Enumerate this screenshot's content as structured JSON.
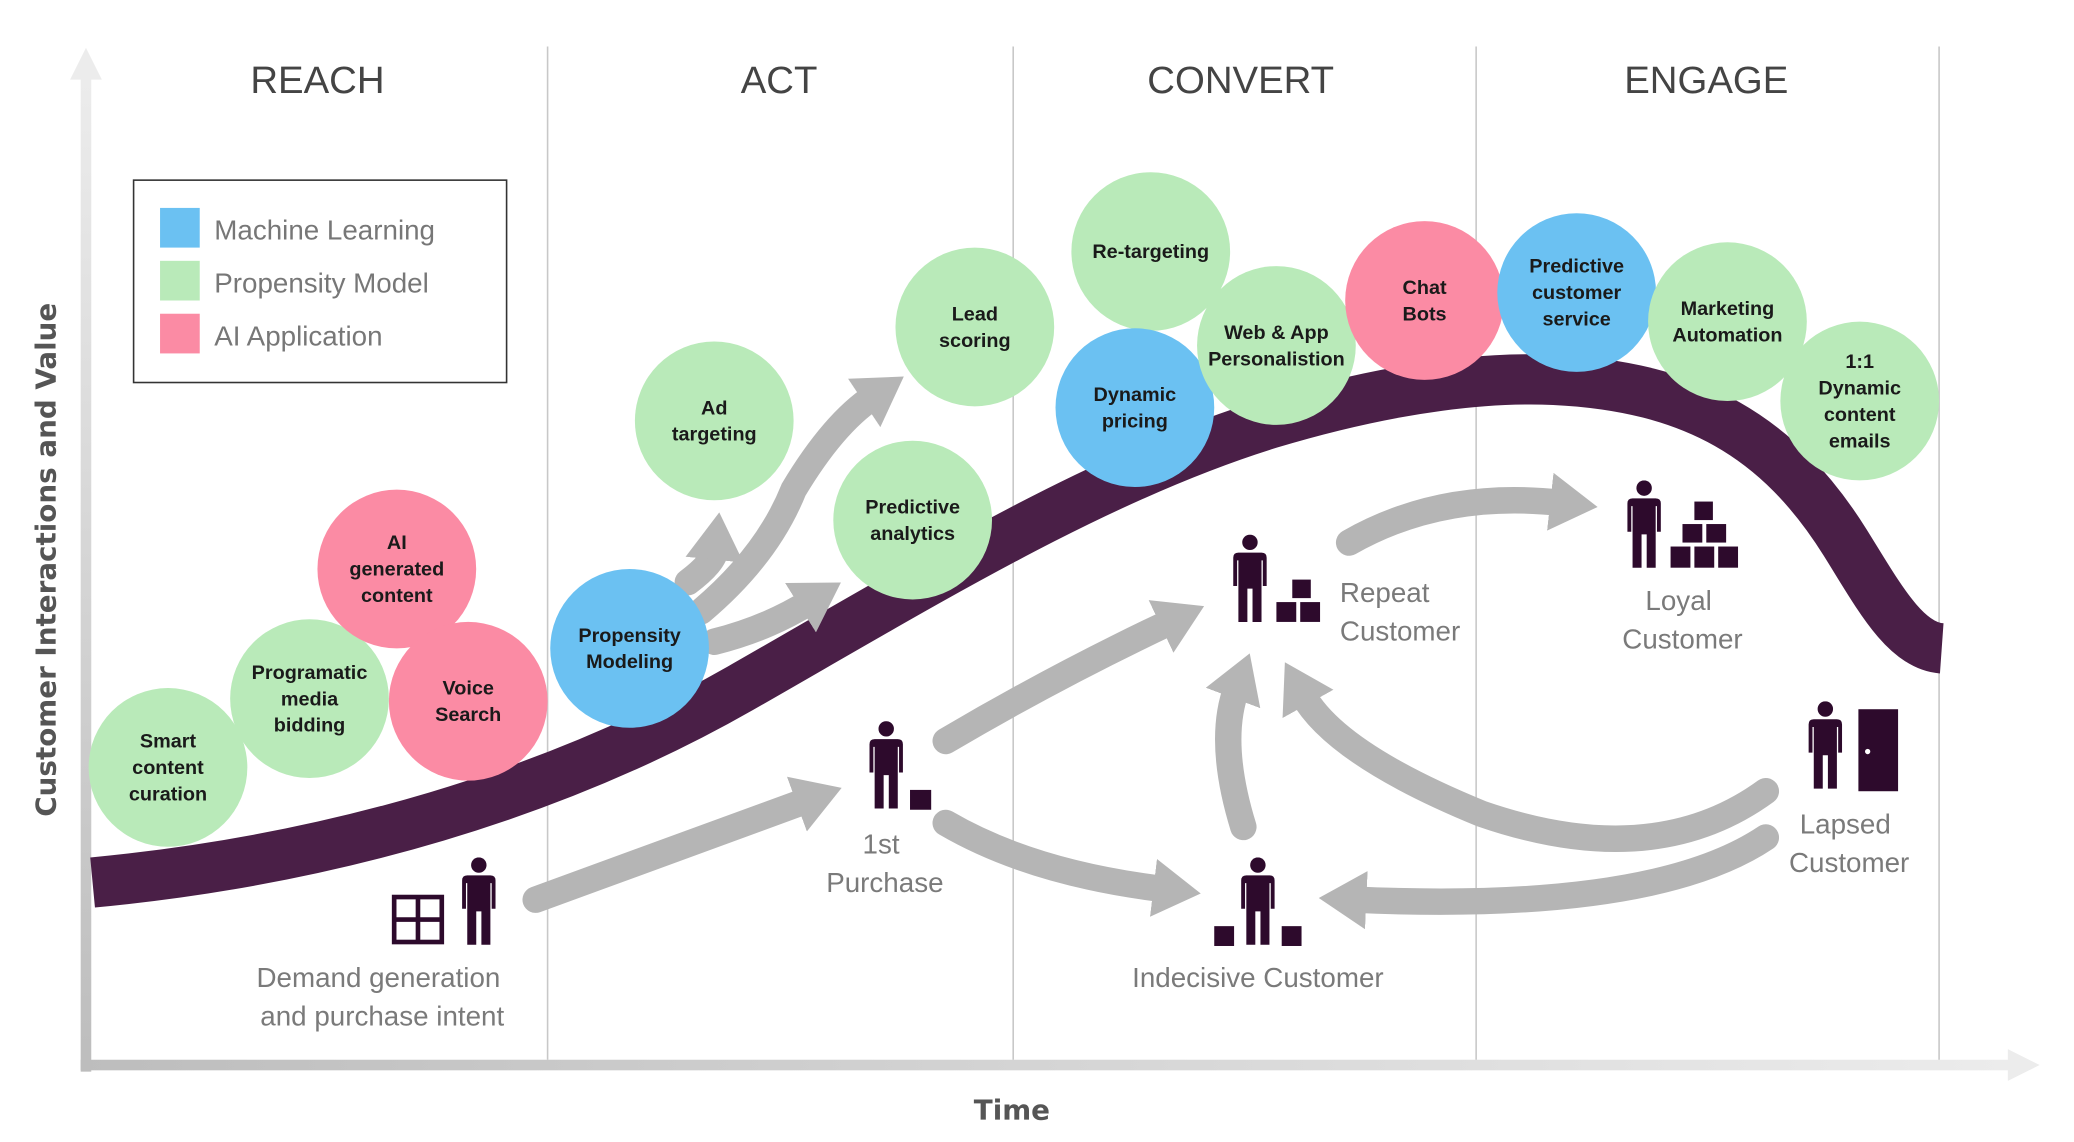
{
  "stages": [
    "REACH",
    "ACT",
    "CONVERT",
    "ENGAGE"
  ],
  "legend": [
    {
      "label": "Machine Learning",
      "color": "#6bc1f2"
    },
    {
      "label": "Propensity Model",
      "color": "#b9eab9"
    },
    {
      "label": "AI  Application",
      "color": "#fb8ba4"
    }
  ],
  "axes": {
    "y_label": "Customer Interactions and Value",
    "x_label": "Time"
  },
  "colors": {
    "curve": "#4a1f47",
    "icon": "#2d0a2c",
    "arrow": "#b5b5b5"
  },
  "bubbles": [
    {
      "lines": [
        "Smart",
        "content",
        "curation"
      ],
      "type": "Propensity Model"
    },
    {
      "lines": [
        "Programatic",
        "media",
        "bidding"
      ],
      "type": "Propensity Model"
    },
    {
      "lines": [
        "AI",
        "generated",
        "content"
      ],
      "type": "AI Application"
    },
    {
      "lines": [
        "Voice",
        "Search"
      ],
      "type": "AI Application"
    },
    {
      "lines": [
        "Propensity",
        "Modeling"
      ],
      "type": "Machine Learning"
    },
    {
      "lines": [
        "Ad",
        "targeting"
      ],
      "type": "Propensity Model"
    },
    {
      "lines": [
        "Lead",
        "scoring"
      ],
      "type": "Propensity Model"
    },
    {
      "lines": [
        "Predictive",
        "analytics"
      ],
      "type": "Propensity Model"
    },
    {
      "lines": [
        "Re-targeting"
      ],
      "type": "Propensity Model"
    },
    {
      "lines": [
        "Dynamic",
        "pricing"
      ],
      "type": "Machine Learning"
    },
    {
      "lines": [
        "Web & App",
        "Personalistion"
      ],
      "type": "Propensity Model"
    },
    {
      "lines": [
        "Chat",
        "Bots"
      ],
      "type": "AI Application"
    },
    {
      "lines": [
        "Predictive",
        "customer",
        "service"
      ],
      "type": "Machine Learning"
    },
    {
      "lines": [
        "Marketing",
        "Automation"
      ],
      "type": "Propensity Model"
    },
    {
      "lines": [
        "1:1",
        "Dynamic",
        "content",
        "emails"
      ],
      "type": "Propensity Model"
    }
  ],
  "customer_stages": {
    "demand": [
      "Demand generation",
      "and purchase intent"
    ],
    "first_purchase": [
      "1st",
      "Purchase"
    ],
    "repeat": [
      "Repeat",
      "Customer"
    ],
    "loyal": [
      "Loyal",
      "Customer"
    ],
    "lapsed": [
      "Lapsed",
      "Customer"
    ],
    "indecisive": [
      "Indecisive Customer"
    ]
  }
}
